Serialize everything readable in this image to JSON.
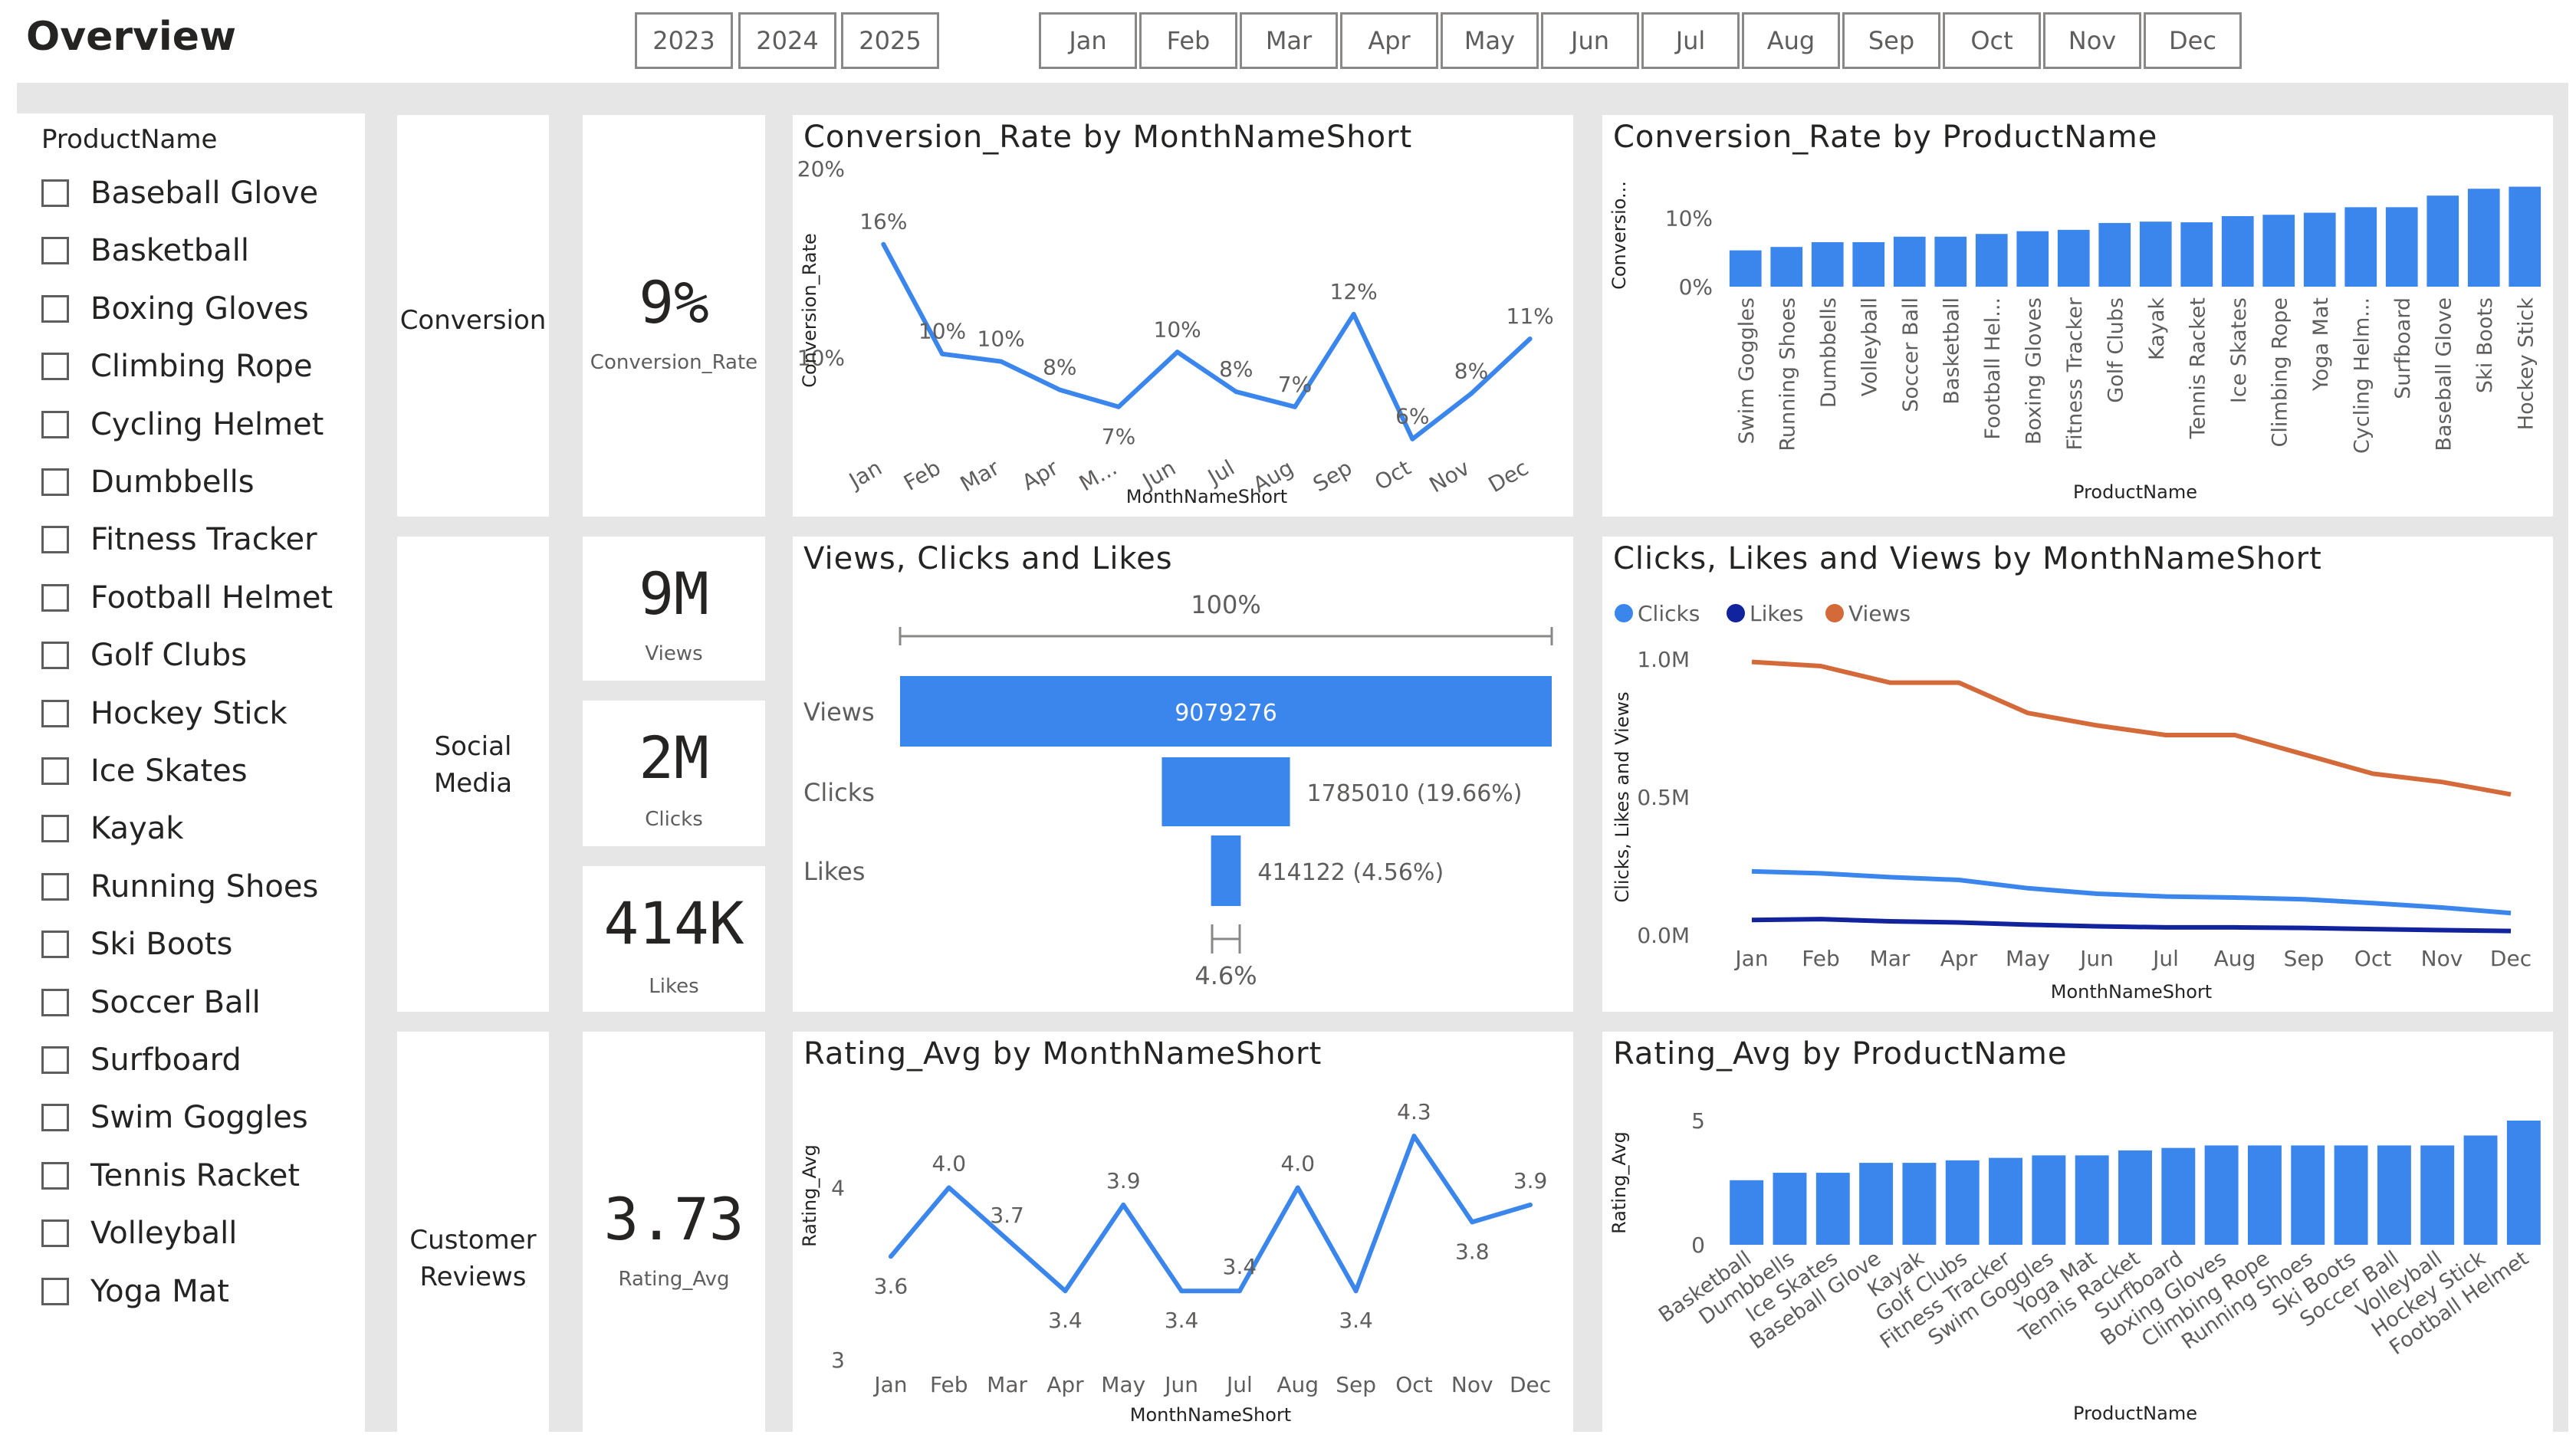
{
  "header": {
    "title": "Overview"
  },
  "years": [
    "2023",
    "2024",
    "2025"
  ],
  "months": [
    "Jan",
    "Feb",
    "Mar",
    "Apr",
    "May",
    "Jun",
    "Jul",
    "Aug",
    "Sep",
    "Oct",
    "Nov",
    "Dec"
  ],
  "colors": {
    "blue": "#3b86ec",
    "navy": "#12239e",
    "orange": "#d4693a",
    "grid": "#e1dfdd"
  },
  "product_slicer": {
    "title": "ProductName",
    "items": [
      "Baseball Glove",
      "Basketball",
      "Boxing Gloves",
      "Climbing Rope",
      "Cycling Helmet",
      "Dumbbells",
      "Fitness Tracker",
      "Football Helmet",
      "Golf Clubs",
      "Hockey Stick",
      "Ice Skates",
      "Kayak",
      "Running Shoes",
      "Ski Boots",
      "Soccer Ball",
      "Surfboard",
      "Swim Goggles",
      "Tennis Racket",
      "Volleyball",
      "Yoga Mat"
    ]
  },
  "sections": {
    "conversion": "Conversion",
    "social_line1": "Social",
    "social_line2": "Media",
    "reviews_line1": "Customer",
    "reviews_line2": "Reviews"
  },
  "kpis": {
    "conversion": {
      "value": "9%",
      "label": "Conversion_Rate"
    },
    "views": {
      "value": "9M",
      "label": "Views"
    },
    "clicks": {
      "value": "2M",
      "label": "Clicks"
    },
    "likes": {
      "value": "414K",
      "label": "Likes"
    },
    "rating": {
      "value": "3.73",
      "label": "Rating_Avg"
    }
  },
  "chart_data": [
    {
      "id": "conv_month",
      "type": "line",
      "title": "Conversion_Rate by MonthNameShort",
      "xlabel": "MonthNameShort",
      "ylabel": "Conversion_Rate",
      "categories": [
        "Jan",
        "Feb",
        "Mar",
        "Apr",
        "M...",
        "Jun",
        "Jul",
        "Aug",
        "Sep",
        "Oct",
        "Nov",
        "Dec"
      ],
      "values": [
        16,
        10.2,
        9.8,
        8.3,
        7.4,
        10.3,
        8.2,
        7.4,
        12.3,
        5.7,
        8.1,
        11.0
      ],
      "data_labels": [
        "16%",
        "10%",
        "10%",
        "8%",
        "7%",
        "10%",
        "8%",
        "7%",
        "12%",
        "6%",
        "8%",
        "11%"
      ],
      "yticks": [
        "10%",
        "20%"
      ],
      "ylim": [
        5,
        20
      ]
    },
    {
      "id": "conv_product",
      "type": "bar",
      "title": "Conversion_Rate by ProductName",
      "xlabel": "ProductName",
      "ylabel": "Conversio...",
      "categories": [
        "Swim Goggles",
        "Running Shoes",
        "Dumbbells",
        "Volleyball",
        "Soccer Ball",
        "Basketball",
        "Football Hel...",
        "Boxing Gloves",
        "Fitness Tracker",
        "Golf Clubs",
        "Kayak",
        "Tennis Racket",
        "Ice Skates",
        "Climbing Rope",
        "Yoga Mat",
        "Cycling Helm...",
        "Surfboard",
        "Baseball Glove",
        "Ski Boots",
        "Hockey Stick"
      ],
      "values": [
        5.3,
        5.8,
        6.5,
        6.5,
        7.3,
        7.3,
        7.7,
        8.1,
        8.3,
        9.3,
        9.5,
        9.4,
        10.3,
        10.5,
        10.8,
        11.6,
        11.6,
        13.3,
        14.3,
        14.6
      ],
      "yticks": [
        "0%",
        "10%"
      ],
      "ylim": [
        0,
        15
      ]
    },
    {
      "id": "funnel",
      "type": "bar",
      "title": "Views, Clicks and Likes",
      "top_label": "100%",
      "bottom_label": "4.6%",
      "categories": [
        "Views",
        "Clicks",
        "Likes"
      ],
      "values": [
        9079276,
        1785010,
        414122
      ],
      "data_labels": [
        "9079276",
        "1785010 (19.66%)",
        "414122 (4.56%)"
      ]
    },
    {
      "id": "clv_month",
      "type": "line",
      "title": "Clicks, Likes and Views by MonthNameShort",
      "xlabel": "MonthNameShort",
      "ylabel": "Clicks, Likes and Views",
      "categories": [
        "Jan",
        "Feb",
        "Mar",
        "Apr",
        "May",
        "Jun",
        "Jul",
        "Aug",
        "Sep",
        "Oct",
        "Nov",
        "Dec"
      ],
      "series": [
        {
          "name": "Clicks",
          "color": "#3b86ec",
          "values": [
            0.231,
            0.224,
            0.21,
            0.2,
            0.17,
            0.15,
            0.14,
            0.136,
            0.13,
            0.116,
            0.1,
            0.08
          ]
        },
        {
          "name": "Likes",
          "color": "#12239e",
          "values": [
            0.055,
            0.058,
            0.05,
            0.046,
            0.038,
            0.032,
            0.028,
            0.028,
            0.026,
            0.022,
            0.018,
            0.015
          ]
        },
        {
          "name": "Views",
          "color": "#d4693a",
          "values": [
            0.99,
            0.975,
            0.915,
            0.915,
            0.805,
            0.76,
            0.725,
            0.725,
            0.655,
            0.585,
            0.555,
            0.51
          ]
        }
      ],
      "yticks": [
        "0.0M",
        "0.5M",
        "1.0M"
      ],
      "ylim": [
        0,
        1.0
      ],
      "legend": "top-left"
    },
    {
      "id": "rating_month",
      "type": "line",
      "title": "Rating_Avg by MonthNameShort",
      "xlabel": "MonthNameShort",
      "ylabel": "Rating_Avg",
      "categories": [
        "Jan",
        "Feb",
        "Mar",
        "Apr",
        "May",
        "Jun",
        "Jul",
        "Aug",
        "Sep",
        "Oct",
        "Nov",
        "Dec"
      ],
      "values": [
        3.6,
        4.0,
        3.7,
        3.4,
        3.9,
        3.4,
        3.4,
        4.0,
        3.4,
        4.3,
        3.8,
        3.9
      ],
      "data_labels": [
        "3.6",
        "4.0",
        "3.7",
        "3.4",
        "3.9",
        "3.4",
        "3.4",
        "4.0",
        "3.4",
        "4.3",
        "3.8",
        "3.9"
      ],
      "yticks": [
        "3",
        "4"
      ],
      "ylim": [
        3,
        4.55
      ]
    },
    {
      "id": "rating_product",
      "type": "bar",
      "title": "Rating_Avg by ProductName",
      "xlabel": "ProductName",
      "ylabel": "Rating_Avg",
      "categories": [
        "Basketball",
        "Dumbbells",
        "Ice Skates",
        "Baseball Glove",
        "Kayak",
        "Golf Clubs",
        "Fitness Tracker",
        "Swim Goggles",
        "Yoga Mat",
        "Tennis Racket",
        "Surfboard",
        "Boxing Gloves",
        "Climbing Rope",
        "Running Shoes",
        "Ski Boots",
        "Soccer Ball",
        "Volleyball",
        "Hockey Stick",
        "Football Helmet"
      ],
      "values": [
        2.6,
        2.9,
        2.9,
        3.3,
        3.3,
        3.4,
        3.5,
        3.6,
        3.6,
        3.8,
        3.9,
        4.0,
        4.0,
        4.0,
        4.0,
        4.0,
        4.0,
        4.4,
        5.0
      ],
      "yticks": [
        "0",
        "5"
      ],
      "ylim": [
        0,
        5
      ]
    }
  ]
}
